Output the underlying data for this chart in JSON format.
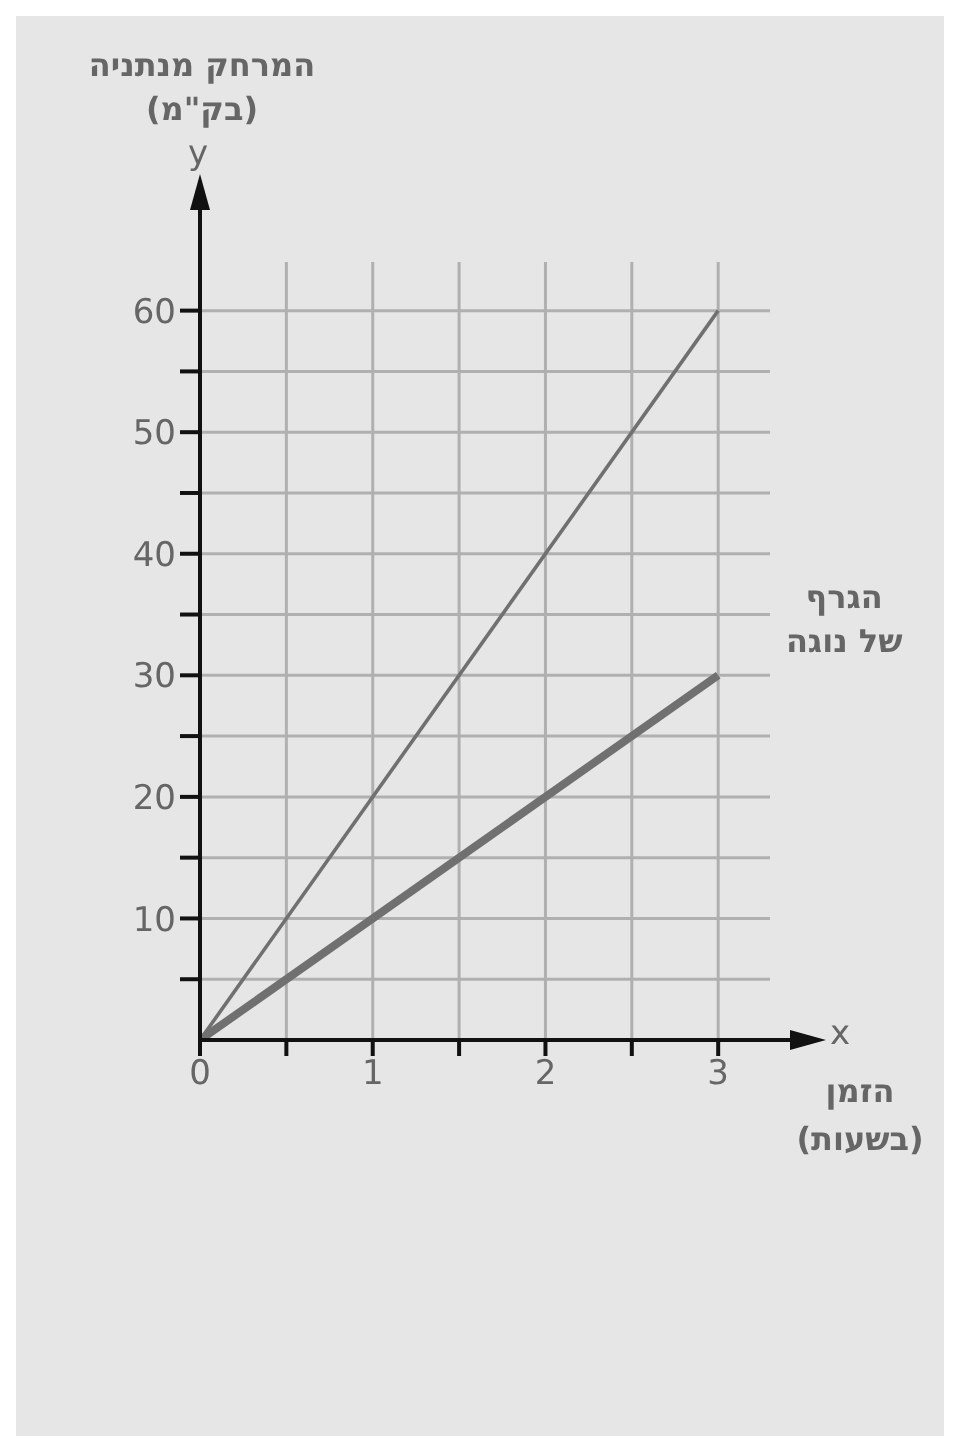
{
  "chart_data": {
    "type": "line",
    "ylabel": "המרחק מנתניה (בק\"מ)",
    "xlabel": "הזמן (בשעות)",
    "annotations": [
      "y",
      "x"
    ],
    "x": [
      0,
      3
    ],
    "series": [
      {
        "color": "#707070",
        "values": [
          0,
          60
        ]
      },
      {
        "name": "הגרף של נוגה",
        "color": "#707070",
        "values": [
          0,
          30
        ]
      }
    ],
    "xlim": [
      0,
      3.3
    ],
    "xticks": [
      0,
      {
        "value": 0.5,
        "label": null
      },
      1,
      {
        "value": 1.5,
        "label": null
      },
      2,
      {
        "value": 2.5,
        "label": null
      },
      3
    ],
    "ylim": [
      0,
      64
    ],
    "yticks": [
      {
        "value": 5,
        "label": null
      },
      10,
      {
        "value": 15,
        "label": null
      },
      20,
      {
        "value": 25,
        "label": null
      },
      30,
      {
        "value": 35,
        "label": null
      },
      40,
      {
        "value": 45,
        "label": null
      },
      50,
      {
        "value": 55,
        "label": null
      },
      60
    ],
    "grid": true,
    "marker": "none",
    "line_style": "solid"
  }
}
